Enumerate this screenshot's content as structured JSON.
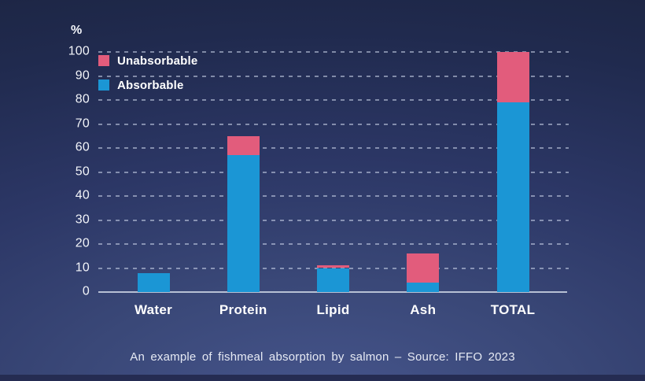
{
  "slide": {
    "caption": "An example of fishmeal absorption by salmon – Source: IFFO 2023"
  },
  "chart_data": {
    "type": "bar",
    "stacked": true,
    "title": "",
    "y_unit": "%",
    "xlabel": "",
    "ylabel": "%",
    "categories": [
      "Water",
      "Protein",
      "Lipid",
      "Ash",
      "TOTAL"
    ],
    "series": [
      {
        "name": "Absorbable",
        "color": "#1b96d5",
        "values": [
          8,
          57,
          10,
          4,
          79
        ]
      },
      {
        "name": "Unabsorbable",
        "color": "#e25c7c",
        "values": [
          0,
          8,
          1,
          12,
          21
        ]
      }
    ],
    "ylim": [
      0,
      100
    ],
    "yticks": [
      0,
      10,
      20,
      30,
      40,
      50,
      60,
      70,
      80,
      90,
      100
    ],
    "grid": "dashed horizontal",
    "legend_position": "top-left",
    "legend_order": [
      "Unabsorbable",
      "Absorbable"
    ]
  }
}
